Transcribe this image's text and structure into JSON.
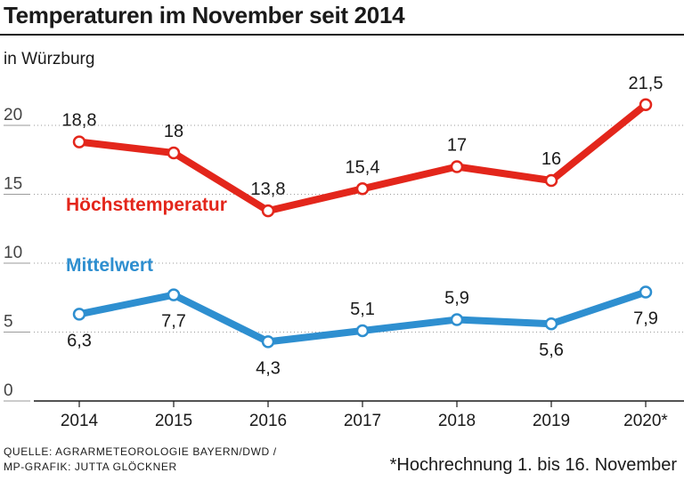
{
  "title": "Temperaturen im November seit 2014",
  "subtitle": "in Würzburg",
  "source": {
    "line1": "QUELLE: AGRARMETEOROLOGIE BAYERN/DWD /",
    "line2": "MP-GRAFIK: JUTTA GLÖCKNER"
  },
  "footnote": "*Hochrechnung 1. bis 16. November",
  "colors": {
    "high": "#e3261b",
    "mean": "#2e8fd0",
    "axis": "#1a1a1a",
    "grid": "#9a9a9a"
  },
  "chart_data": {
    "type": "line",
    "title": "Temperaturen im November seit 2014",
    "subtitle": "in Würzburg",
    "categories": [
      "2014",
      "2015",
      "2016",
      "2017",
      "2018",
      "2019",
      "2020*"
    ],
    "series": [
      {
        "name": "Höchsttemperatur",
        "values": [
          18.8,
          18,
          13.8,
          15.4,
          17,
          16,
          21.5
        ],
        "labels": [
          "18,8",
          "18",
          "13,8",
          "15,4",
          "17",
          "16",
          "21,5"
        ],
        "color": "#e3261b"
      },
      {
        "name": "Mittelwert",
        "values": [
          6.3,
          7.7,
          4.3,
          5.1,
          5.9,
          5.6,
          7.9
        ],
        "labels": [
          "6,3",
          "7,7",
          "4,3",
          "5,1",
          "5,9",
          "5,6",
          "7,9"
        ],
        "color": "#2e8fd0"
      }
    ],
    "yticks": [
      "0",
      "5",
      "10",
      "15",
      "20"
    ],
    "ylim": [
      0,
      25
    ],
    "grid": true,
    "xlabel": "",
    "ylabel": ""
  }
}
